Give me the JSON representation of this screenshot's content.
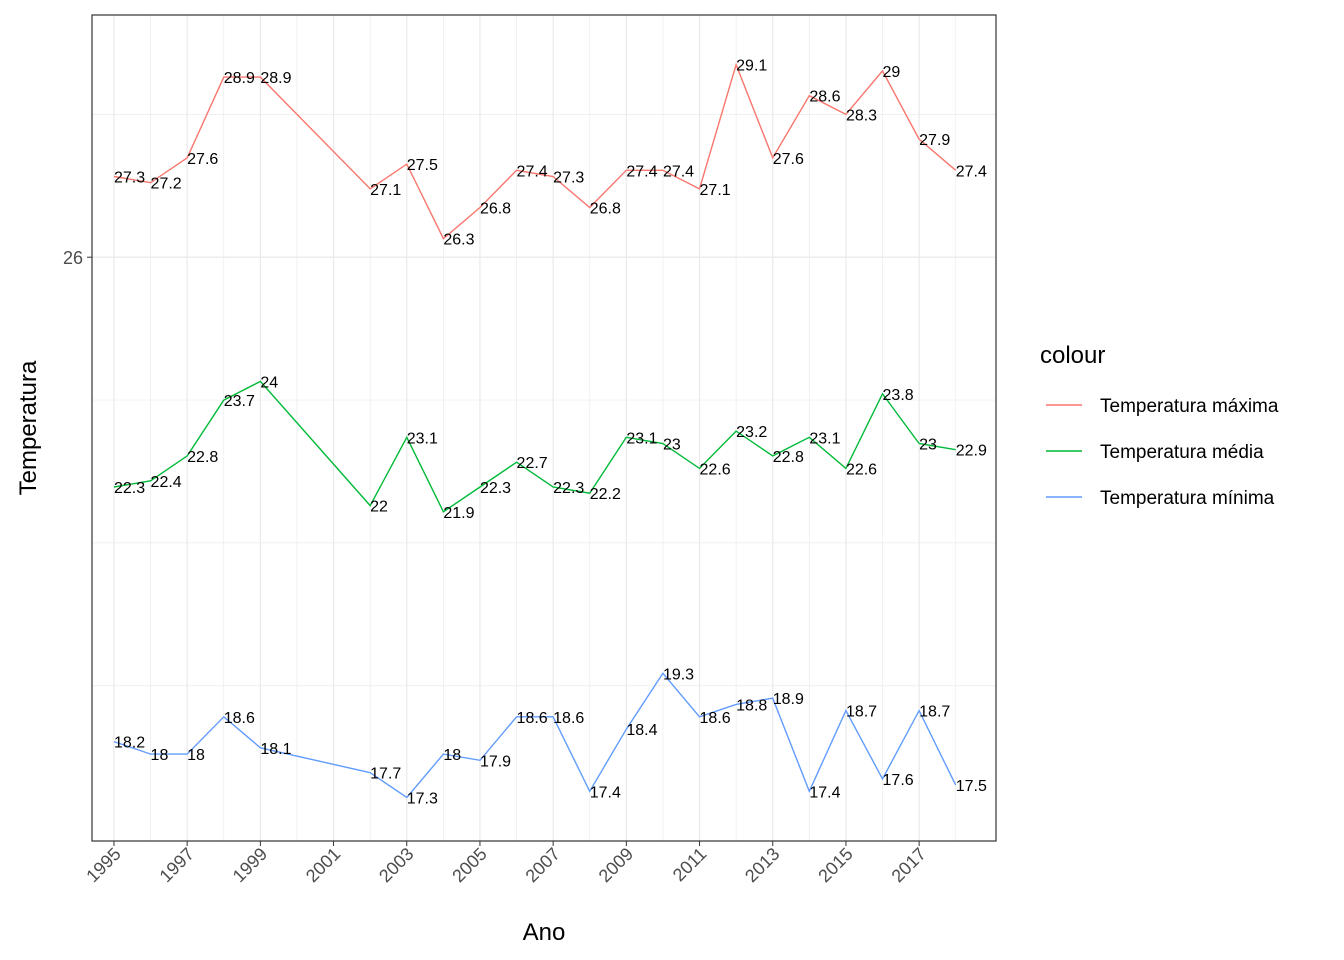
{
  "chart_data": {
    "type": "line",
    "xlabel": "Ano",
    "ylabel": "Temperatura",
    "x_tick_labels": [
      "1995",
      "1997",
      "1999",
      "2001",
      "2003",
      "2005",
      "2007",
      "2009",
      "2011",
      "2013",
      "2015",
      "2017"
    ],
    "y_tick_labels": [
      "26"
    ],
    "xlim": [
      1994.4,
      2019.1
    ],
    "ylim": [
      16.6,
      29.9
    ],
    "grid": true,
    "legend": {
      "title": "colour",
      "position": "right"
    },
    "x": [
      1995,
      1996,
      1997,
      1998,
      1999,
      2002,
      2003,
      2004,
      2005,
      2006,
      2007,
      2008,
      2009,
      2010,
      2011,
      2012,
      2013,
      2014,
      2015,
      2016,
      2017,
      2018
    ],
    "series": [
      {
        "name": "Temperatura máxima",
        "color": "#F8766D",
        "values": [
          27.3,
          27.2,
          27.6,
          28.9,
          28.9,
          27.1,
          27.5,
          26.3,
          26.8,
          27.4,
          27.3,
          26.8,
          27.4,
          27.4,
          27.1,
          29.1,
          27.6,
          28.6,
          28.3,
          29.0,
          27.9,
          27.4
        ],
        "labels": [
          "27.3",
          "27.2",
          "27.6",
          "28.9",
          "28.9",
          "27.1",
          "27.5",
          "26.3",
          "26.8",
          "27.4",
          "27.3",
          "26.8",
          "27.4",
          "27.4",
          "27.1",
          "29.1",
          "27.6",
          "28.6",
          "28.3",
          "29",
          "27.9",
          "27.4"
        ]
      },
      {
        "name": "Temperatura média",
        "color": "#00BA38",
        "values": [
          22.3,
          22.4,
          22.8,
          23.7,
          24.0,
          22.0,
          23.1,
          21.9,
          22.3,
          22.7,
          22.3,
          22.2,
          23.1,
          23.0,
          22.6,
          23.2,
          22.8,
          23.1,
          22.6,
          23.8,
          23.0,
          22.9
        ],
        "labels": [
          "22.3",
          "22.4",
          "22.8",
          "23.7",
          "24",
          "22",
          "23.1",
          "21.9",
          "22.3",
          "22.7",
          "22.3",
          "22.2",
          "23.1",
          "23",
          "22.6",
          "23.2",
          "22.8",
          "23.1",
          "22.6",
          "23.8",
          "23",
          "22.9"
        ]
      },
      {
        "name": "Temperatura mínima",
        "color": "#619CFF",
        "values": [
          18.2,
          18.0,
          18.0,
          18.6,
          18.1,
          17.7,
          17.3,
          18.0,
          17.9,
          18.6,
          18.6,
          17.4,
          18.4,
          19.3,
          18.6,
          18.8,
          18.9,
          17.4,
          18.7,
          17.6,
          18.7,
          17.5
        ],
        "labels": [
          "18.2",
          "18",
          "18",
          "18.6",
          "18.1",
          "17.7",
          "17.3",
          "18",
          "17.9",
          "18.6",
          "18.6",
          "17.4",
          "18.4",
          "19.3",
          "18.6",
          "18.8",
          "18.9",
          "17.4",
          "18.7",
          "17.6",
          "18.7",
          "17.5"
        ]
      }
    ]
  }
}
